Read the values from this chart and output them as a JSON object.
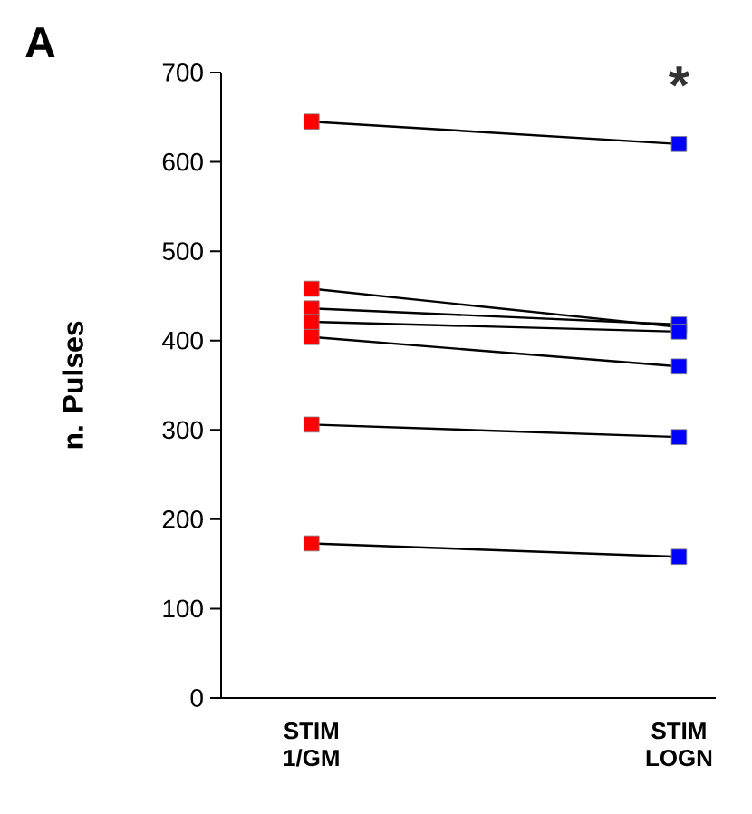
{
  "chart_data": {
    "type": "line",
    "title": "A",
    "ylabel": "n. Pulses",
    "categories": [
      "STIM 1/GM",
      "STIM LOGN"
    ],
    "ylim": [
      0,
      700
    ],
    "yticks": [
      0,
      100,
      200,
      300,
      400,
      500,
      600,
      700
    ],
    "marker": "square",
    "line_style": "solid",
    "grid": false,
    "annotations": [
      "*"
    ],
    "series": [
      {
        "color": "#000000",
        "colors": [
          "#ff0000",
          "#0000ff"
        ],
        "values": [
          645,
          620
        ]
      },
      {
        "color": "#000000",
        "colors": [
          "#ff0000",
          "#0000ff"
        ],
        "values": [
          458,
          415
        ]
      },
      {
        "color": "#000000",
        "colors": [
          "#ff0000",
          "#0000ff"
        ],
        "values": [
          436,
          418
        ]
      },
      {
        "color": "#000000",
        "colors": [
          "#ff0000",
          "#0000ff"
        ],
        "values": [
          421,
          410
        ]
      },
      {
        "color": "#000000",
        "colors": [
          "#ff0000",
          "#0000ff"
        ],
        "values": [
          404,
          371
        ]
      },
      {
        "color": "#000000",
        "colors": [
          "#ff0000",
          "#0000ff"
        ],
        "values": [
          306,
          292
        ]
      },
      {
        "color": "#000000",
        "colors": [
          "#ff0000",
          "#0000ff"
        ],
        "values": [
          173,
          158
        ]
      }
    ]
  }
}
